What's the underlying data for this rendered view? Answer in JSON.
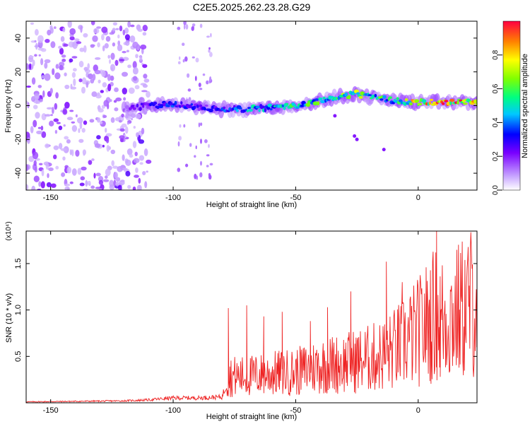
{
  "title": "C2E5.2025.262.23.28.G29",
  "chart_data": [
    {
      "type": "heatmap",
      "xlabel": "Height of straight line (km)",
      "ylabel": "Frequency (Hz)",
      "xlim": [
        -160,
        24
      ],
      "ylim": [
        -50,
        50
      ],
      "x_ticks": [
        -150,
        -100,
        -50,
        0
      ],
      "y_ticks": [
        -40,
        -20,
        0,
        20,
        40
      ],
      "colorbar": {
        "label": "Normalized spectral amplitude",
        "range": [
          0,
          1
        ],
        "ticks": [
          "0.0",
          "0.2",
          "0.4",
          "0.6",
          "0.8"
        ]
      },
      "ridge": {
        "x": [
          -120,
          -110,
          -100,
          -90,
          -80,
          -70,
          -60,
          -50,
          -40,
          -30,
          -25,
          -20,
          -10,
          0,
          10,
          20,
          24
        ],
        "freq": [
          -2,
          0,
          1,
          -1,
          -2,
          -2,
          -1,
          0,
          3,
          6,
          7,
          5,
          3,
          2,
          2,
          2,
          2
        ],
        "amplitude": [
          0.15,
          0.3,
          0.35,
          0.3,
          0.35,
          0.45,
          0.5,
          0.55,
          0.6,
          0.65,
          0.7,
          0.6,
          0.55,
          0.85,
          0.9,
          0.95,
          0.8
        ]
      },
      "noise_region_x": [
        -160,
        -110
      ]
    },
    {
      "type": "line",
      "xlabel": "Height of straight line (km)",
      "ylabel": "SNR (10 * v/v)",
      "y_multiplier": "(x10⁴)",
      "xlim": [
        -160,
        24
      ],
      "ylim": [
        0,
        1.85
      ],
      "x_ticks": [
        -150,
        -100,
        -50,
        0
      ],
      "y_ticks": [
        "0.5",
        "1.0",
        "1.5"
      ],
      "series": [
        {
          "name": "SNR",
          "color": "#ee2222",
          "envelope_x": [
            -160,
            -120,
            -110,
            -100,
            -90,
            -80,
            -77,
            -70,
            -60,
            -50,
            -40,
            -30,
            -20,
            -13,
            -10,
            0,
            5,
            7,
            10,
            15,
            20,
            24
          ],
          "envelope_mean": [
            0.01,
            0.02,
            0.03,
            0.05,
            0.05,
            0.06,
            0.3,
            0.3,
            0.33,
            0.35,
            0.42,
            0.45,
            0.5,
            0.55,
            0.6,
            0.8,
            0.95,
            1.0,
            0.95,
            1.0,
            1.1,
            1.2
          ],
          "peaks": [
            {
              "x": -77.5,
              "y": 1.02
            },
            {
              "x": -70.0,
              "y": 1.05
            },
            {
              "x": -63.0,
              "y": 0.93
            },
            {
              "x": -55.5,
              "y": 0.98
            },
            {
              "x": -44.0,
              "y": 0.88
            },
            {
              "x": -37.0,
              "y": 1.03
            },
            {
              "x": -27.5,
              "y": 1.2
            },
            {
              "x": -13.0,
              "y": 1.52
            },
            {
              "x": -6.5,
              "y": 1.3
            },
            {
              "x": 7.5,
              "y": 1.85
            },
            {
              "x": 9.0,
              "y": 0.28
            },
            {
              "x": 20.5,
              "y": 1.42
            }
          ]
        }
      ]
    }
  ]
}
